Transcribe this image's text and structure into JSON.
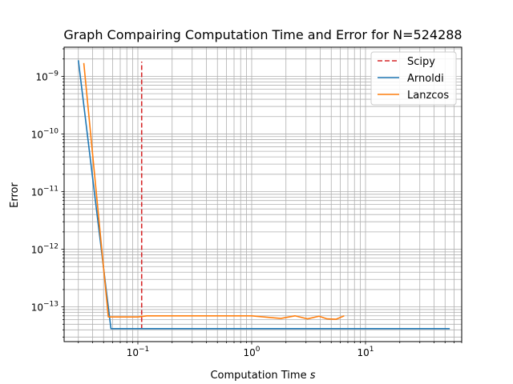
{
  "chart_data": {
    "type": "line",
    "title": "Graph Compairing Computation Time and Error for N=524288",
    "xlabel": "Computation Time",
    "xlabel_unit": "s",
    "ylabel": "Error",
    "xscale": "log",
    "yscale": "log",
    "xlim": [
      0.0225,
      70
    ],
    "ylim": [
      2.5e-14,
      3.2e-09
    ],
    "grid": "major and minor",
    "legend_position": "top-right",
    "x_tick_labels": [
      {
        "value": 0.1,
        "base": "10",
        "exp": "−1"
      },
      {
        "value": 1,
        "base": "10",
        "exp": "0"
      },
      {
        "value": 10,
        "base": "10",
        "exp": "1"
      }
    ],
    "y_tick_labels": [
      {
        "value": 1e-13,
        "base": "10",
        "exp": "−13"
      },
      {
        "value": 1e-12,
        "base": "10",
        "exp": "−12"
      },
      {
        "value": 1e-11,
        "base": "10",
        "exp": "−11"
      },
      {
        "value": 1e-10,
        "base": "10",
        "exp": "−10"
      },
      {
        "value": 1e-09,
        "base": "10",
        "exp": "−9"
      }
    ],
    "series": [
      {
        "name": "Scipy",
        "color": "#d62728",
        "style": "dashed",
        "x": [
          0.108,
          0.108
        ],
        "y": [
          4.1e-14,
          1.8e-09
        ]
      },
      {
        "name": "Arnoldi",
        "color": "#1f77b4",
        "style": "solid",
        "x": [
          0.03,
          0.058,
          55
        ],
        "y": [
          1.9e-09,
          4.2e-14,
          4.2e-14
        ]
      },
      {
        "name": "Lanzcos",
        "color": "#ff7f0e",
        "style": "solid",
        "x": [
          0.0335,
          0.055,
          0.1,
          0.12,
          1.0,
          1.8,
          2.4,
          3.1,
          3.9,
          4.6,
          5.5,
          6.5
        ],
        "y": [
          1.7e-09,
          6.7e-14,
          6.7e-14,
          7e-14,
          7e-14,
          6.3e-14,
          7e-14,
          6.2e-14,
          6.9e-14,
          6.2e-14,
          6.1e-14,
          7e-14
        ]
      }
    ]
  }
}
